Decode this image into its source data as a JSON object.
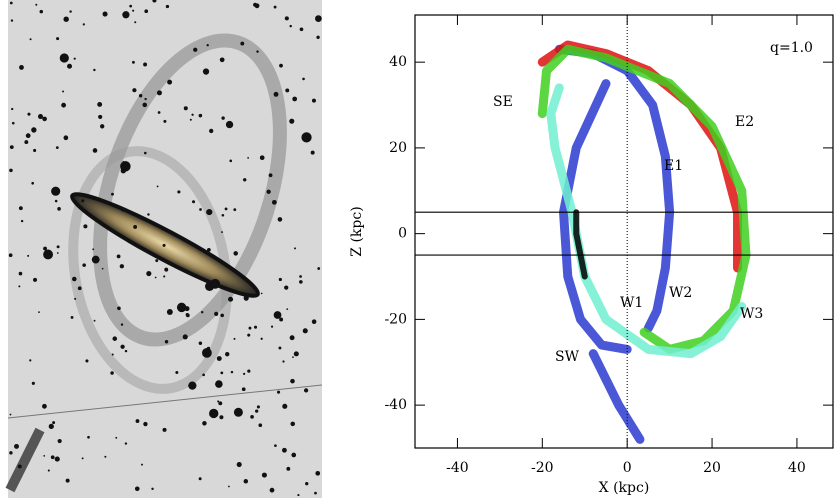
{
  "chart_data": {
    "type": "line",
    "xlabel": "X (kpc)",
    "ylabel": "Z (kpc)",
    "xlim": [
      -50,
      48.5
    ],
    "ylim": [
      -50,
      51
    ],
    "xticks": [
      -40,
      -20,
      0,
      20,
      40
    ],
    "yticks": [
      -40,
      -20,
      0,
      20,
      40
    ],
    "hlines": [
      5,
      -5
    ],
    "vline": 0,
    "annotations": [
      "q=1.0",
      "SE",
      "E2",
      "E1",
      "W1",
      "W2",
      "W3",
      "SW"
    ],
    "series": [
      {
        "color": "#2a3bd0",
        "x": [
          -16,
          -8,
          0,
          6,
          9,
          10,
          9,
          7,
          5
        ],
        "values": [
          43,
          42,
          38,
          30,
          18,
          5,
          -8,
          -18,
          -22
        ]
      },
      {
        "color": "#2a3bd0",
        "x": [
          -5,
          -12,
          -15,
          -14,
          -11,
          -6,
          0
        ],
        "values": [
          35,
          20,
          5,
          -10,
          -20,
          -26,
          -27
        ]
      },
      {
        "color": "#2a3bd0",
        "x": [
          -8,
          -2,
          3
        ],
        "values": [
          -28,
          -40,
          -48
        ]
      },
      {
        "color": "#e01010",
        "x": [
          -20,
          -14,
          -5,
          5,
          15,
          22,
          26,
          26
        ],
        "values": [
          40,
          44,
          42,
          38,
          30,
          20,
          5,
          -8
        ]
      },
      {
        "color": "#40d020",
        "x": [
          -20,
          -19,
          -14,
          -5,
          10,
          20,
          27,
          28,
          25,
          18,
          10,
          4
        ],
        "values": [
          28,
          38,
          43,
          41,
          35,
          25,
          10,
          -5,
          -18,
          -25,
          -27,
          -23
        ]
      },
      {
        "color": "#70f0d0",
        "x": [
          -16,
          -18,
          -17,
          -13,
          -10,
          -5,
          5,
          15,
          22,
          27
        ],
        "values": [
          34,
          28,
          20,
          5,
          -10,
          -20,
          -27,
          -28,
          -24,
          -17
        ]
      },
      {
        "color": "#000000",
        "x": [
          -12,
          -12,
          -11,
          -10
        ],
        "values": [
          5,
          0,
          -5,
          -10
        ]
      }
    ]
  }
}
